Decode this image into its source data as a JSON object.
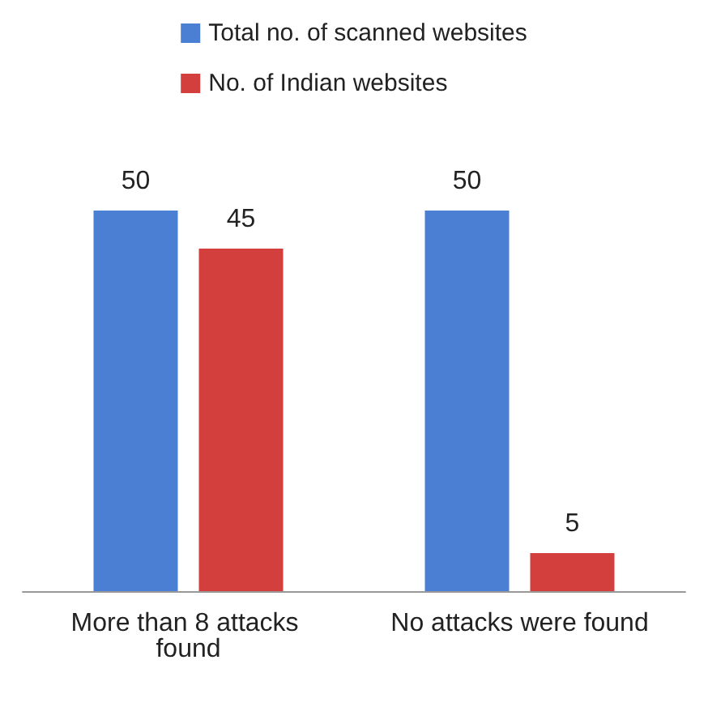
{
  "chart_data": {
    "type": "bar",
    "categories": [
      "More than 8 attacks found",
      "No attacks were found"
    ],
    "series": [
      {
        "name": "Total no. of scanned websites",
        "color": "#4a7fd4",
        "values": [
          50,
          50
        ]
      },
      {
        "name": "No. of Indian websites",
        "color": "#d23f3c",
        "values": [
          45,
          5
        ]
      }
    ],
    "data_labels": true,
    "legend": "top",
    "tick_labels": "x"
  }
}
